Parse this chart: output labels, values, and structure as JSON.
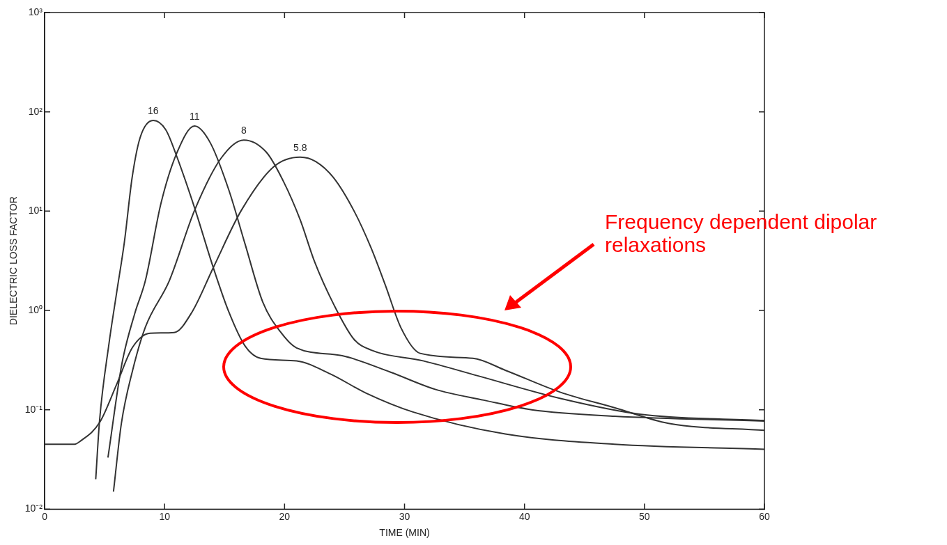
{
  "chart_data": {
    "type": "line",
    "xlabel": "TIME (MIN)",
    "ylabel": "DIELECTRIC LOSS FACTOR",
    "log": "y",
    "grid": false,
    "legend": false,
    "marker": "none",
    "line_style": "solid",
    "xlim": [
      0,
      60
    ],
    "xticks": [
      0,
      10,
      20,
      30,
      40,
      50,
      60
    ],
    "ylim": [
      0.01,
      1000
    ],
    "yticks": [
      {
        "value": 0.01,
        "label": "10⁻²"
      },
      {
        "value": 0.1,
        "label": "10⁻¹"
      },
      {
        "value": 1,
        "label": "10⁰"
      },
      {
        "value": 10,
        "label": "10¹"
      },
      {
        "value": 100,
        "label": "10²"
      },
      {
        "value": 1000,
        "label": "10³"
      }
    ],
    "annotations": [
      "Frequency dependent dipolar relaxations"
    ],
    "series": [
      {
        "name": "16",
        "color": "#333333",
        "x": [
          4.26,
          4.58,
          5.35,
          6.0,
          6.65,
          7.3,
          7.96,
          9.05,
          10.1,
          11.0,
          12.5,
          14.06,
          15.35,
          16.7,
          18.0,
          21.0,
          23.8,
          26.8,
          30.7,
          38.4,
          47.5,
          60
        ],
        "values": [
          0.02,
          0.078,
          0.45,
          1.5,
          4.9,
          22,
          55,
          82,
          66,
          36,
          10.8,
          2.7,
          0.97,
          0.44,
          0.33,
          0.31,
          0.23,
          0.147,
          0.095,
          0.057,
          0.045,
          0.04
        ]
      },
      {
        "name": "11",
        "color": "#333333",
        "x": [
          5.28,
          6.44,
          7.5,
          8.4,
          9.7,
          11.0,
          12.5,
          13.8,
          15.35,
          16.7,
          18.2,
          19.7,
          21.0,
          24.8,
          28.8,
          32.6,
          36.6,
          40.6,
          47.5,
          60
        ],
        "values": [
          0.033,
          0.29,
          0.92,
          2.0,
          12,
          38,
          72,
          49,
          16.4,
          4.7,
          1.2,
          0.6,
          0.42,
          0.35,
          0.24,
          0.16,
          0.125,
          0.1,
          0.086,
          0.077
        ]
      },
      {
        "name": "8",
        "color": "#333333",
        "x": [
          5.74,
          6.4,
          7.3,
          8.4,
          10.4,
          12.5,
          14.7,
          16.6,
          18.5,
          19.9,
          21.3,
          22.5,
          24.1,
          25.8,
          27.2,
          31.6,
          36.1,
          43,
          49.7,
          60
        ],
        "values": [
          0.015,
          0.073,
          0.24,
          0.68,
          2.0,
          10.2,
          34,
          52,
          39,
          20,
          8.2,
          3.1,
          1.15,
          0.51,
          0.4,
          0.31,
          0.22,
          0.13,
          0.09,
          0.078
        ]
      },
      {
        "name": "5.8",
        "color": "#333333",
        "x": [
          0,
          2.5,
          2.94,
          4.6,
          6.0,
          7.3,
          8.8,
          10.8,
          12.3,
          14.06,
          16.4,
          19.1,
          21.3,
          22.6,
          24.1,
          25.8,
          27.2,
          28.4,
          29.7,
          31.3,
          35.7,
          38.4,
          43,
          47.5,
          52,
          60
        ],
        "values": [
          0.045,
          0.045,
          0.048,
          0.075,
          0.18,
          0.42,
          0.59,
          0.6,
          0.97,
          2.7,
          10.2,
          28,
          35,
          31.6,
          21.6,
          10,
          4.3,
          1.8,
          0.67,
          0.37,
          0.33,
          0.25,
          0.15,
          0.105,
          0.073,
          0.062
        ]
      }
    ]
  }
}
